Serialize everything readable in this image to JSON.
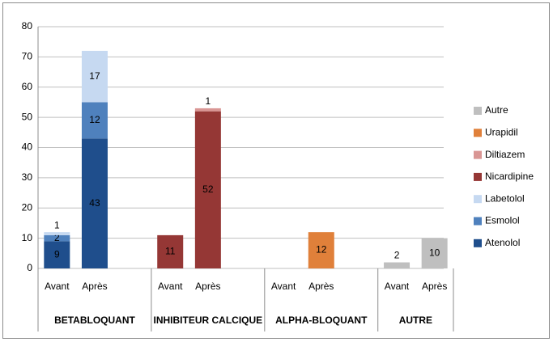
{
  "chart_data": {
    "type": "bar",
    "stacked": true,
    "categories": [
      "Avant",
      "Après",
      null,
      "Avant",
      "Après",
      null,
      "Avant",
      "Après",
      null,
      "Avant",
      "Après"
    ],
    "groups": [
      "BETABLOQUANT",
      "INHIBITEUR CALCIQUE",
      "ALPHA-BLOQUANT",
      "AUTRE"
    ],
    "series": [
      {
        "name": "Atenolol",
        "color": "#1f4e8c",
        "values": [
          9,
          43,
          null,
          null,
          null,
          null,
          null,
          null,
          null,
          null,
          null
        ]
      },
      {
        "name": "Esmolol",
        "color": "#4f81bd",
        "values": [
          2,
          12,
          null,
          null,
          null,
          null,
          null,
          null,
          null,
          null,
          null
        ]
      },
      {
        "name": "Labetolol",
        "color": "#c6d9f1",
        "values": [
          1,
          17,
          null,
          null,
          null,
          null,
          null,
          null,
          null,
          null,
          null
        ]
      },
      {
        "name": "Nicardipine",
        "color": "#953735",
        "values": [
          null,
          null,
          null,
          11,
          52,
          null,
          null,
          null,
          null,
          null,
          null
        ]
      },
      {
        "name": "Diltiazem",
        "color": "#d99694",
        "values": [
          null,
          null,
          null,
          null,
          1,
          null,
          null,
          null,
          null,
          null,
          null
        ]
      },
      {
        "name": "Urapidil",
        "color": "#e0803a",
        "values": [
          null,
          null,
          null,
          null,
          null,
          null,
          null,
          12,
          null,
          null,
          null
        ]
      },
      {
        "name": "Autre",
        "color": "#bfbfbf",
        "values": [
          null,
          null,
          null,
          null,
          null,
          null,
          null,
          null,
          null,
          2,
          10
        ]
      }
    ],
    "ylim": [
      0,
      80
    ],
    "yticks": [
      0,
      10,
      20,
      30,
      40,
      50,
      60,
      70,
      80
    ],
    "grid": true,
    "legend": "right"
  }
}
